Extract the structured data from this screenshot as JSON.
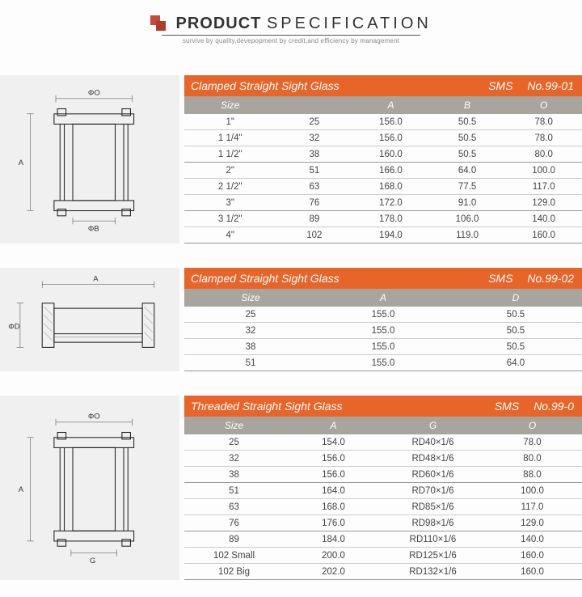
{
  "header": {
    "title_word1": "PRODUCT",
    "title_word2": "SPECIFICATION",
    "subtitle": "survive by quality,devepopment by credit,and efficiency by management"
  },
  "colors": {
    "title_bar": "#e8652a",
    "head_bar": "#a7a59e",
    "logo_front": "#c74a3a",
    "logo_back": "#b03a2c",
    "row_border": "#cccccc",
    "row_border_strong": "#999999",
    "diagram_bg": "#f0f0f0"
  },
  "table1": {
    "title": "Clamped Straight Sight Glass",
    "std": "SMS",
    "no": "No.99-01",
    "columns": [
      "Size",
      "",
      "A",
      "B",
      "O"
    ],
    "rows": [
      {
        "cells": [
          "1\"",
          "25",
          "156.0",
          "50.5",
          "78.0"
        ],
        "sep": false
      },
      {
        "cells": [
          "1 1/4\"",
          "32",
          "156.0",
          "50.5",
          "78.0"
        ],
        "sep": false
      },
      {
        "cells": [
          "1 1/2\"",
          "38",
          "160.0",
          "50.5",
          "80.0"
        ],
        "sep": true
      },
      {
        "cells": [
          "2\"",
          "51",
          "166.0",
          "64.0",
          "100.0"
        ],
        "sep": false
      },
      {
        "cells": [
          "2 1/2\"",
          "63",
          "168.0",
          "77.5",
          "117.0"
        ],
        "sep": false
      },
      {
        "cells": [
          "3\"",
          "76",
          "172.0",
          "91.0",
          "129.0"
        ],
        "sep": true
      },
      {
        "cells": [
          "3 1/2\"",
          "89",
          "178.0",
          "106.0",
          "140.0"
        ],
        "sep": false
      },
      {
        "cells": [
          "4\"",
          "102",
          "194.0",
          "119.0",
          "160.0"
        ],
        "sep": true
      }
    ]
  },
  "table2": {
    "title": "Clamped Straight Sight Glass",
    "std": "SMS",
    "no": "No.99-02",
    "columns": [
      "Size",
      "A",
      "D"
    ],
    "rows": [
      {
        "cells": [
          "25",
          "155.0",
          "50.5"
        ],
        "sep": false
      },
      {
        "cells": [
          "32",
          "155.0",
          "50.5"
        ],
        "sep": false
      },
      {
        "cells": [
          "38",
          "155.0",
          "50.5"
        ],
        "sep": false
      },
      {
        "cells": [
          "51",
          "155.0",
          "64.0"
        ],
        "sep": true
      }
    ]
  },
  "table3": {
    "title": "Threaded Straight Sight Glass",
    "std": "SMS",
    "no": "No.99-0",
    "columns": [
      "Size",
      "A",
      "G",
      "O"
    ],
    "rows": [
      {
        "cells": [
          "25",
          "154.0",
          "RD40×1/6",
          "78.0"
        ],
        "sep": false
      },
      {
        "cells": [
          "32",
          "156.0",
          "RD48×1/6",
          "80.0"
        ],
        "sep": false
      },
      {
        "cells": [
          "38",
          "156.0",
          "RD60×1/6",
          "88.0"
        ],
        "sep": true
      },
      {
        "cells": [
          "51",
          "164.0",
          "RD70×1/6",
          "100.0"
        ],
        "sep": false
      },
      {
        "cells": [
          "63",
          "168.0",
          "RD85×1/6",
          "117.0"
        ],
        "sep": false
      },
      {
        "cells": [
          "76",
          "176.0",
          "RD98×1/6",
          "129.0"
        ],
        "sep": true
      },
      {
        "cells": [
          "89",
          "184.0",
          "RD110×1/6",
          "140.0"
        ],
        "sep": false
      },
      {
        "cells": [
          "102 Small",
          "200.0",
          "RD125×1/6",
          "160.0"
        ],
        "sep": false
      },
      {
        "cells": [
          "102 Big",
          "202.0",
          "RD132×1/6",
          "160.0"
        ],
        "sep": true
      }
    ]
  },
  "diagram_labels": {
    "d1_top": "ΦO",
    "d1_left": "A",
    "d1_bottom": "ΦB",
    "d2_top": "A",
    "d2_left": "ΦD",
    "d3_top": "ΦO",
    "d3_left": "A",
    "d3_bottom": "G"
  }
}
